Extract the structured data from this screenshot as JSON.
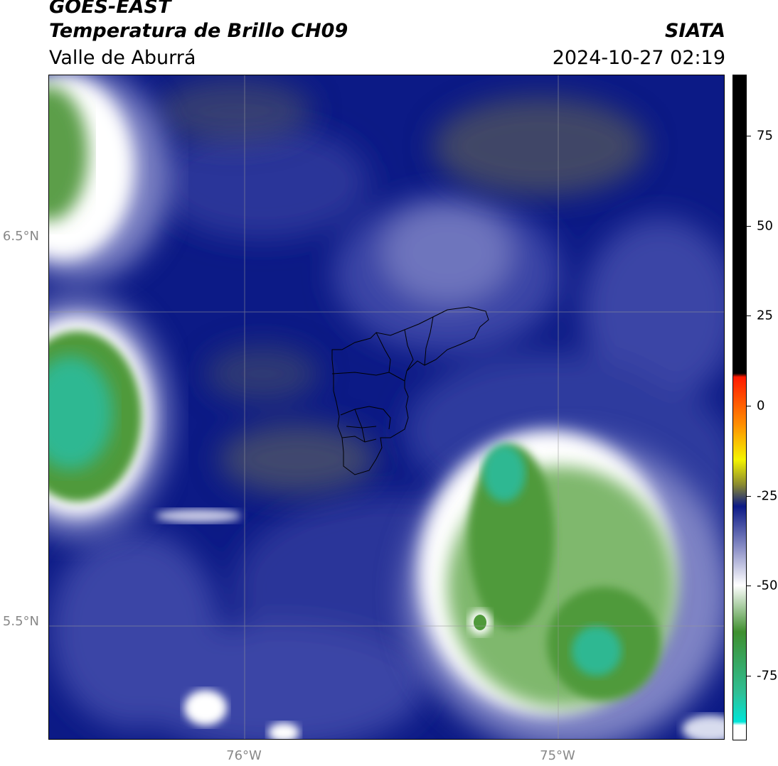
{
  "header": {
    "title": "GOES-EAST",
    "subtitle": "Temperatura de Brillo CH09",
    "region": "Valle de Aburrá",
    "organization": "SIATA",
    "timestamp": "2024-10-27 02:19"
  },
  "axes": {
    "lat_labels": [
      "6.5°N",
      "5.5°N"
    ],
    "lon_labels": [
      "76°W",
      "75°W"
    ]
  },
  "colorbar": {
    "tick_labels": [
      "75",
      "50",
      "25",
      "0",
      "-25",
      "-50",
      "-75"
    ],
    "tick_values": [
      75,
      50,
      25,
      0,
      -25,
      -50,
      -75
    ],
    "range": [
      -93,
      92
    ],
    "colors": {
      "black": "#000000",
      "red": "#ff1a00",
      "orange": "#ff8c00",
      "yellow": "#f4f400",
      "olive": "#8a8a30",
      "navy": "#0c1a86",
      "lavender": "#8f93c8",
      "white": "#ffffff",
      "green": "#3f8f2f",
      "teal": "#2fbf95",
      "cyan": "#00e5d8"
    }
  },
  "map": {
    "background_color": "#0c1a86",
    "gridline_color": "#9a9a9a",
    "boundary_color": "#000000"
  }
}
